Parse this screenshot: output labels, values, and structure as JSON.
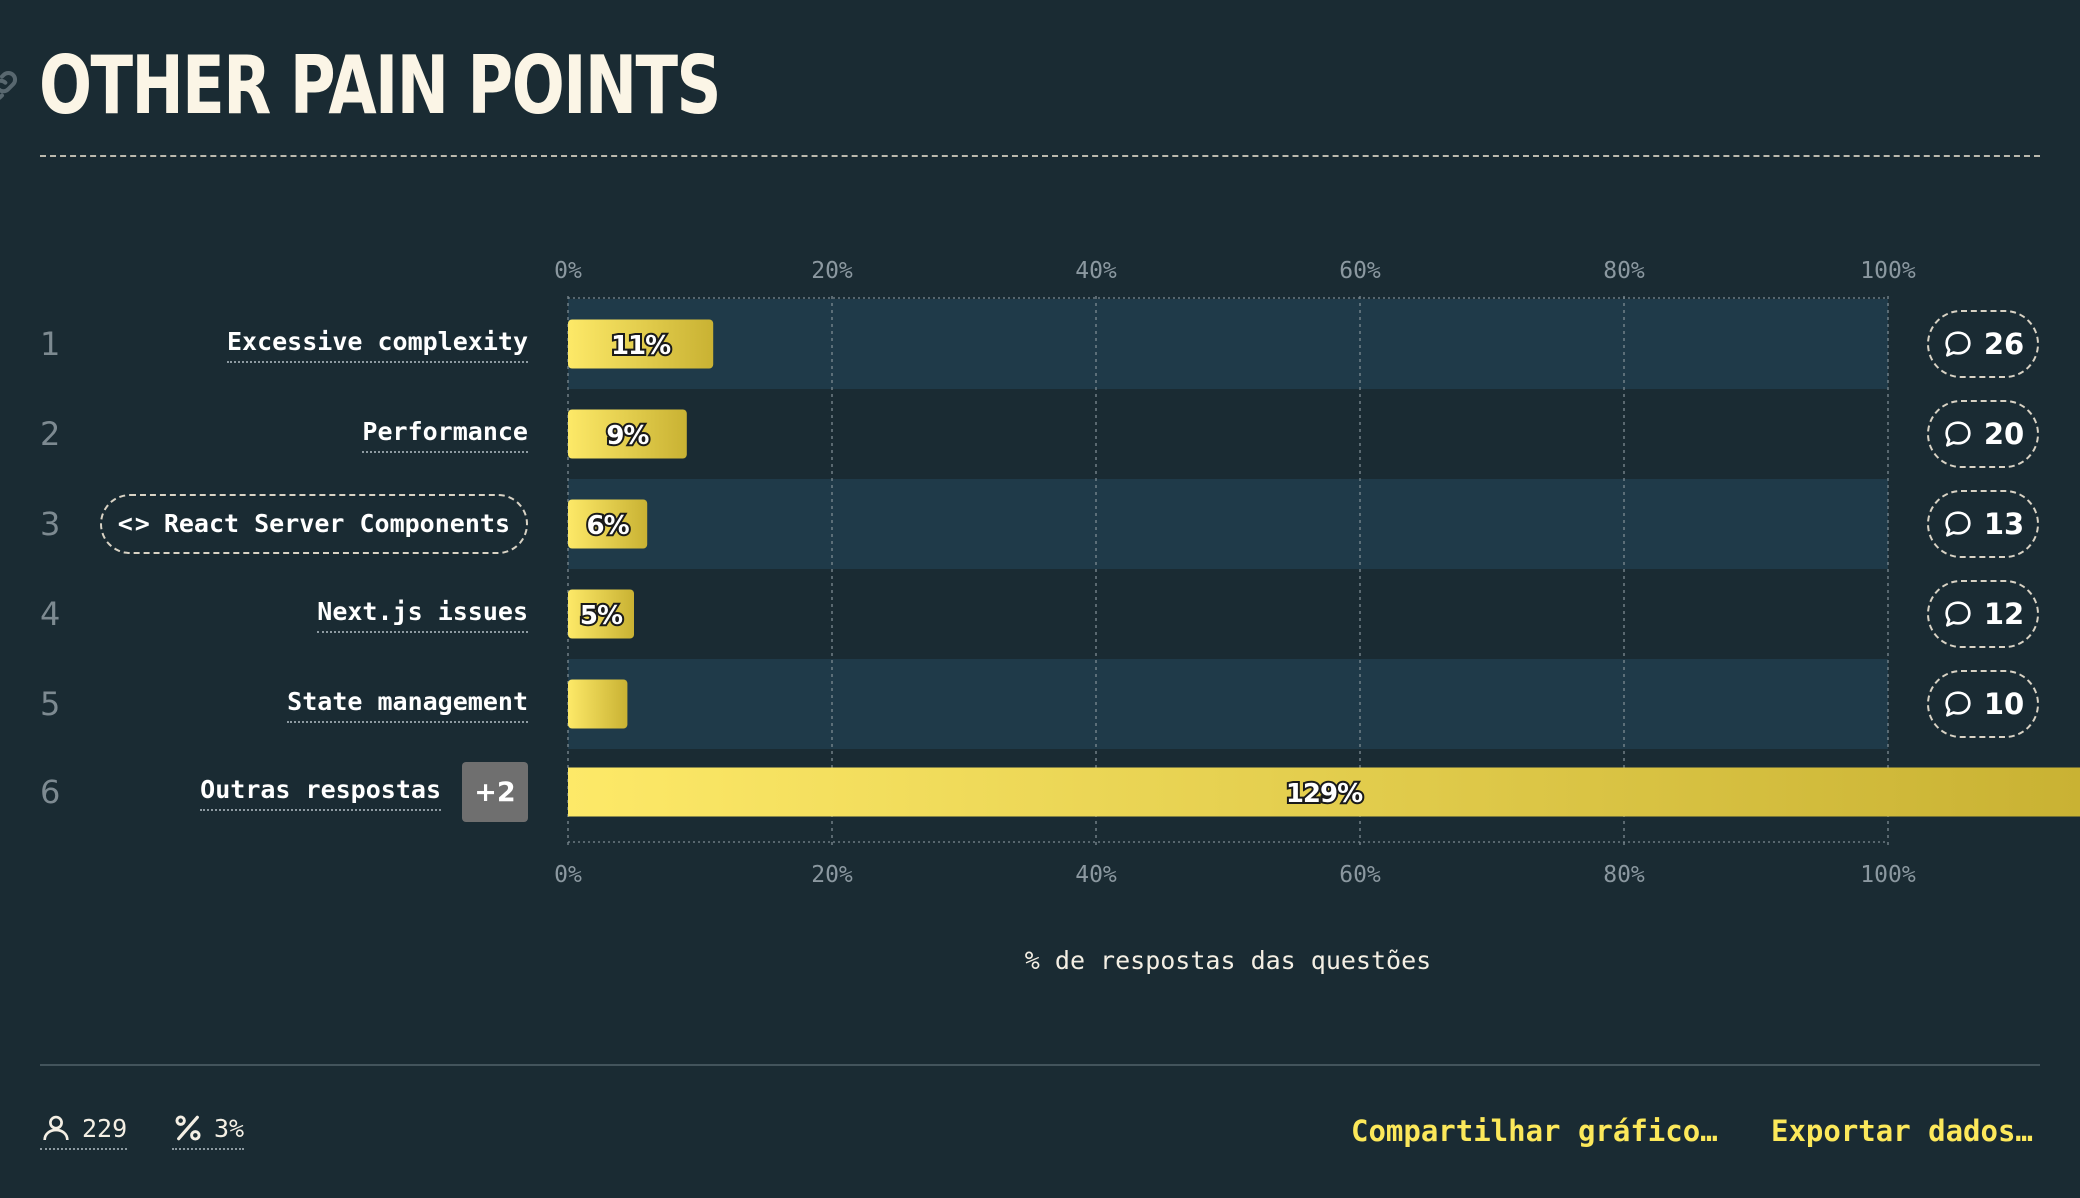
{
  "header": {
    "title": "OTHER PAIN POINTS"
  },
  "chart_data": {
    "type": "bar",
    "orientation": "horizontal",
    "categories": [
      "Excessive complexity",
      "Performance",
      "React Server Components",
      "Next.js issues",
      "State management",
      "Outras respostas"
    ],
    "ranks": [
      "1",
      "2",
      "3",
      "4",
      "5",
      "6"
    ],
    "values": [
      11,
      9,
      6,
      5,
      4.5,
      129
    ],
    "value_labels": [
      "11%",
      "9%",
      "6%",
      "5%",
      "",
      "129%"
    ],
    "comment_counts": [
      "26",
      "20",
      "13",
      "12",
      "10",
      ""
    ],
    "other_badge": "+2",
    "xlim": [
      0,
      100
    ],
    "x_ticks": [
      "0%",
      "20%",
      "40%",
      "60%",
      "80%",
      "100%"
    ],
    "xlabel": "% de respostas das questões",
    "grid": true,
    "colors": {
      "bar_start": "#fde968",
      "bar_end": "#c9b233",
      "row_band": "#1f3a49",
      "background": "#1a2b33"
    }
  },
  "footer": {
    "respondents": "229",
    "percent": "3%",
    "share_label": "Compartilhar gráfico…",
    "export_label": "Exportar dados…"
  },
  "icons": {
    "link": "link-icon",
    "user": "user-icon",
    "percent": "percent-icon",
    "comment": "comment-icon",
    "code": "code-icon"
  }
}
